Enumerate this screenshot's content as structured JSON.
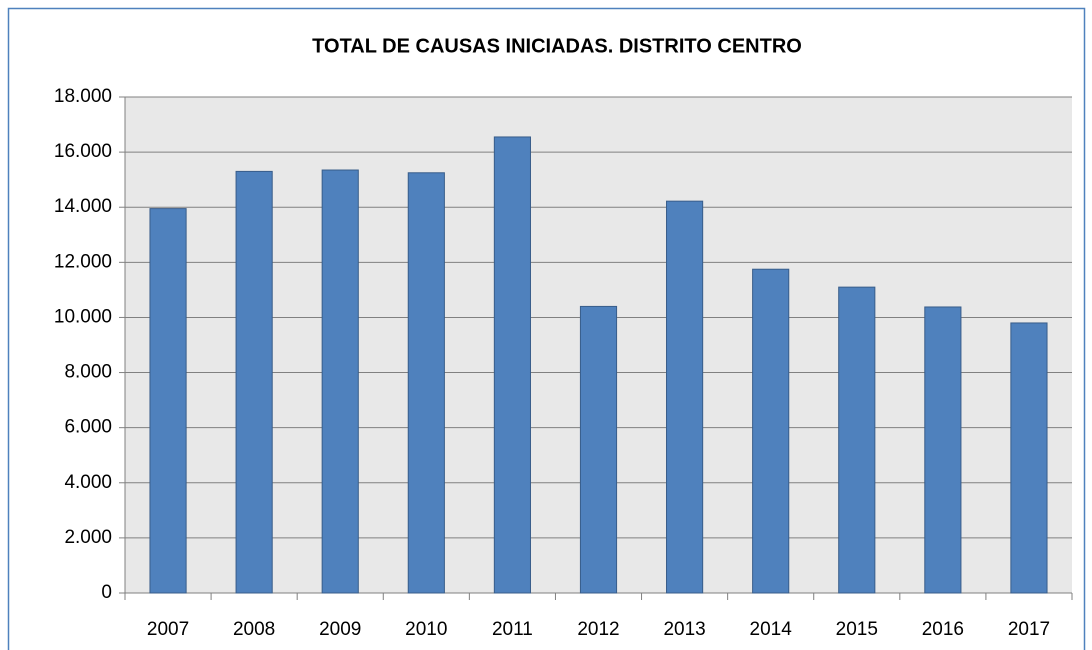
{
  "chart_data": {
    "type": "bar",
    "title": "TOTAL DE CAUSAS INICIADAS. DISTRITO CENTRO",
    "categories": [
      "2007",
      "2008",
      "2009",
      "2010",
      "2011",
      "2012",
      "2013",
      "2014",
      "2015",
      "2016",
      "2017"
    ],
    "values": [
      13950,
      15300,
      15350,
      15250,
      16550,
      10400,
      14220,
      11750,
      11100,
      10380,
      9800
    ],
    "color": "#4f81bd",
    "ylim": [
      0,
      18000
    ],
    "yticks": [
      0,
      {
        "value": 2000,
        "label": "2.000"
      },
      {
        "value": 4000,
        "label": "4.000"
      },
      {
        "value": 6000,
        "label": "6.000"
      },
      {
        "value": 8000,
        "label": "8.000"
      },
      {
        "value": 10000,
        "label": "10.000"
      },
      {
        "value": 12000,
        "label": "12.000"
      },
      {
        "value": 14000,
        "label": "14.000"
      },
      {
        "value": 16000,
        "label": "16.000"
      },
      {
        "value": 18000,
        "label": "18.000"
      }
    ],
    "grid": true
  }
}
